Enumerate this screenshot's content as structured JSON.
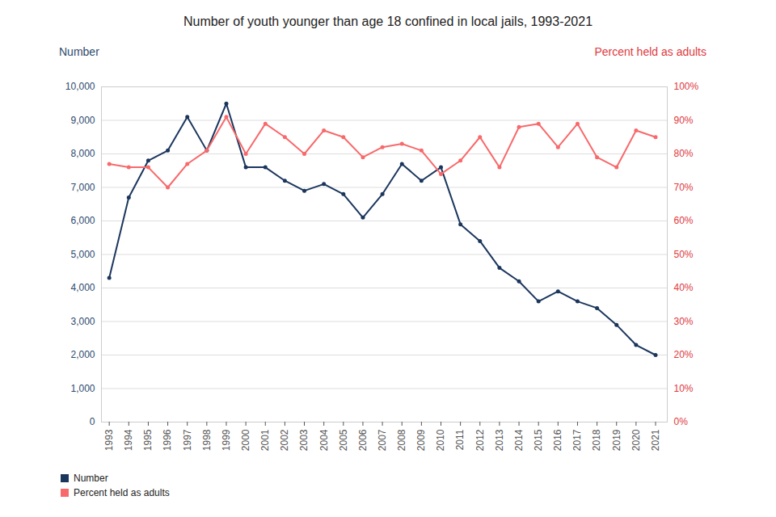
{
  "chart_data": {
    "type": "line",
    "title": "Number of youth younger than age 18 confined in local jails, 1993-2021",
    "ylabel": "Number",
    "y2label": "Percent held as adults",
    "x": [
      1993,
      1994,
      1995,
      1996,
      1997,
      1998,
      1999,
      2000,
      2001,
      2002,
      2003,
      2004,
      2005,
      2006,
      2007,
      2008,
      2009,
      2010,
      2011,
      2012,
      2013,
      2014,
      2015,
      2016,
      2017,
      2018,
      2019,
      2020,
      2021
    ],
    "xlim": [
      1992.6,
      2021.6
    ],
    "xticks": [
      1993,
      1994,
      1995,
      1996,
      1997,
      1998,
      1999,
      2000,
      2001,
      2002,
      2003,
      2004,
      2005,
      2006,
      2007,
      2008,
      2009,
      2010,
      2011,
      2012,
      2013,
      2014,
      2015,
      2016,
      2017,
      2018,
      2019,
      2020,
      2021
    ],
    "ylim": [
      0,
      10000
    ],
    "yticks": [
      0,
      {
        "value": 1000,
        "label": "1,000"
      },
      {
        "value": 2000,
        "label": "2,000"
      },
      {
        "value": 3000,
        "label": "3,000"
      },
      {
        "value": 4000,
        "label": "4,000"
      },
      {
        "value": 5000,
        "label": "5,000"
      },
      {
        "value": 6000,
        "label": "6,000"
      },
      {
        "value": 7000,
        "label": "7,000"
      },
      {
        "value": 8000,
        "label": "8,000"
      },
      {
        "value": 9000,
        "label": "9,000"
      },
      {
        "value": 10000,
        "label": "10,000"
      }
    ],
    "y2lim": [
      0,
      100
    ],
    "y2ticks": [
      {
        "value": 0,
        "label": "0%"
      },
      {
        "value": 10,
        "label": "10%"
      },
      {
        "value": 20,
        "label": "20%"
      },
      {
        "value": 30,
        "label": "30%"
      },
      {
        "value": 40,
        "label": "40%"
      },
      {
        "value": 50,
        "label": "50%"
      },
      {
        "value": 60,
        "label": "60%"
      },
      {
        "value": 70,
        "label": "70%"
      },
      {
        "value": 80,
        "label": "80%"
      },
      {
        "value": 90,
        "label": "90%"
      },
      {
        "value": 100,
        "label": "100%"
      }
    ],
    "grid": true,
    "legend": "bottom",
    "series": [
      {
        "name": "Number",
        "color": "#1b365d",
        "marker": "circle",
        "values": [
          4300,
          6700,
          7800,
          8100,
          9100,
          8100,
          9500,
          7600,
          7600,
          7200,
          6900,
          7100,
          6800,
          6100,
          6800,
          7700,
          7200,
          7600,
          5900,
          5400,
          4600,
          4200,
          3600,
          3900,
          3600,
          3400,
          2900,
          2300,
          2000
        ]
      },
      {
        "name": "Percent held as adults",
        "color": "#f8696b",
        "marker": "circle",
        "axis": "y2",
        "values": [
          77,
          76,
          76,
          70,
          77,
          81,
          91,
          80,
          89,
          85,
          80,
          87,
          85,
          79,
          82,
          83,
          81,
          74,
          78,
          85,
          76,
          88,
          89,
          82,
          89,
          79,
          76,
          87,
          85
        ]
      }
    ]
  }
}
